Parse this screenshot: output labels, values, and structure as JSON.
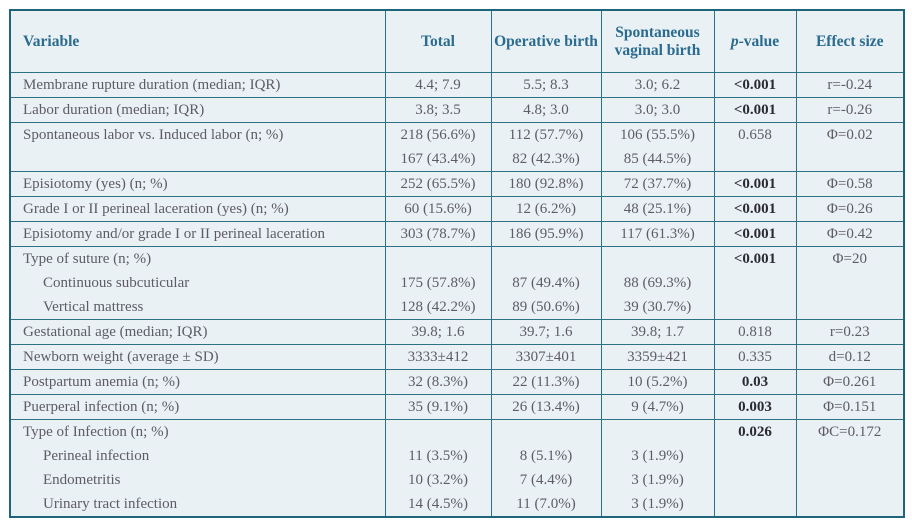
{
  "table": {
    "headers": {
      "variable": "Variable",
      "total": "Total",
      "operative": "Operative birth",
      "spontaneous": "Spontaneous vaginal birth",
      "p_italic": "p",
      "p_rest": "-value",
      "effect": "Effect size"
    },
    "colors": {
      "outer_border": "#1f6478",
      "grid_line": "#2c7186",
      "table_background": "#e9f1f4",
      "header_text": "#2a6b8f",
      "body_text": "#5e5b67",
      "bold_pvalue_text": "#2b2a34"
    },
    "rows": [
      {
        "lines": [
          {
            "label": "Membrane rupture duration (median; IQR)",
            "indent": false,
            "total": "4.4; 7.9",
            "operative": "5.5; 8.3",
            "spontaneous": "3.0; 6.2"
          }
        ],
        "p": "<0.001",
        "p_bold": true,
        "effect": "r=-0.24"
      },
      {
        "lines": [
          {
            "label": "Labor duration (median; IQR)",
            "indent": false,
            "total": "3.8; 3.5",
            "operative": "4.8; 3.0",
            "spontaneous": "3.0; 3.0"
          }
        ],
        "p": "<0.001",
        "p_bold": true,
        "effect": "r=-0.26"
      },
      {
        "lines": [
          {
            "label": "Spontaneous labor vs. Induced labor (n; %)",
            "indent": false,
            "total": "218 (56.6%)",
            "operative": "112 (57.7%)",
            "spontaneous": "106 (55.5%)"
          },
          {
            "label": "",
            "indent": false,
            "total": "167 (43.4%)",
            "operative": "82 (42.3%)",
            "spontaneous": "85 (44.5%)"
          }
        ],
        "p": "0.658",
        "p_bold": false,
        "effect": "Φ=0.02"
      },
      {
        "lines": [
          {
            "label": "Episiotomy (yes) (n; %)",
            "indent": false,
            "total": "252 (65.5%)",
            "operative": "180 (92.8%)",
            "spontaneous": "72 (37.7%)"
          }
        ],
        "p": "<0.001",
        "p_bold": true,
        "effect": "Φ=0.58"
      },
      {
        "lines": [
          {
            "label": "Grade I or II perineal laceration (yes) (n; %)",
            "indent": false,
            "total": "60 (15.6%)",
            "operative": "12 (6.2%)",
            "spontaneous": "48 (25.1%)"
          }
        ],
        "p": "<0.001",
        "p_bold": true,
        "effect": "Φ=0.26"
      },
      {
        "lines": [
          {
            "label": "Episiotomy and/or grade I or II perineal laceration",
            "indent": false,
            "total": "303 (78.7%)",
            "operative": "186 (95.9%)",
            "spontaneous": "117 (61.3%)"
          }
        ],
        "p": "<0.001",
        "p_bold": true,
        "effect": "Φ=0.42"
      },
      {
        "lines": [
          {
            "label": "Type of suture (n; %)",
            "indent": false,
            "total": "",
            "operative": "",
            "spontaneous": ""
          },
          {
            "label": "Continuous subcuticular",
            "indent": true,
            "total": "175 (57.8%)",
            "operative": "87 (49.4%)",
            "spontaneous": "88 (69.3%)"
          },
          {
            "label": "Vertical mattress",
            "indent": true,
            "total": "128 (42.2%)",
            "operative": "89 (50.6%)",
            "spontaneous": "39 (30.7%)"
          }
        ],
        "p": "<0.001",
        "p_bold": true,
        "effect": "Φ=20"
      },
      {
        "lines": [
          {
            "label": "Gestational age (median; IQR)",
            "indent": false,
            "total": "39.8; 1.6",
            "operative": "39.7; 1.6",
            "spontaneous": "39.8; 1.7"
          }
        ],
        "p": "0.818",
        "p_bold": false,
        "effect": "r=0.23"
      },
      {
        "lines": [
          {
            "label": "Newborn weight (average ± SD)",
            "indent": false,
            "total": "3333±412",
            "operative": "3307±401",
            "spontaneous": "3359±421"
          }
        ],
        "p": "0.335",
        "p_bold": false,
        "effect": "d=0.12"
      },
      {
        "lines": [
          {
            "label": "Postpartum anemia (n; %)",
            "indent": false,
            "total": "32 (8.3%)",
            "operative": "22 (11.3%)",
            "spontaneous": "10 (5.2%)"
          }
        ],
        "p": "0.03",
        "p_bold": true,
        "effect": "Φ=0.261"
      },
      {
        "lines": [
          {
            "label": "Puerperal infection (n; %)",
            "indent": false,
            "total": "35 (9.1%)",
            "operative": "26 (13.4%)",
            "spontaneous": "9 (4.7%)"
          }
        ],
        "p": "0.003",
        "p_bold": true,
        "effect": "Φ=0.151"
      },
      {
        "lines": [
          {
            "label": "Type of Infection (n; %)",
            "indent": false,
            "total": "",
            "operative": "",
            "spontaneous": ""
          },
          {
            "label": "Perineal infection",
            "indent": true,
            "total": "11 (3.5%)",
            "operative": "8 (5.1%)",
            "spontaneous": "3 (1.9%)"
          },
          {
            "label": "Endometritis",
            "indent": true,
            "total": "10 (3.2%)",
            "operative": "7 (4.4%)",
            "spontaneous": "3 (1.9%)"
          },
          {
            "label": "Urinary tract infection",
            "indent": true,
            "total": "14 (4.5%)",
            "operative": "11 (7.0%)",
            "spontaneous": "3 (1.9%)"
          }
        ],
        "p": "0.026",
        "p_bold": true,
        "effect": "ΦC=0.172"
      }
    ]
  }
}
